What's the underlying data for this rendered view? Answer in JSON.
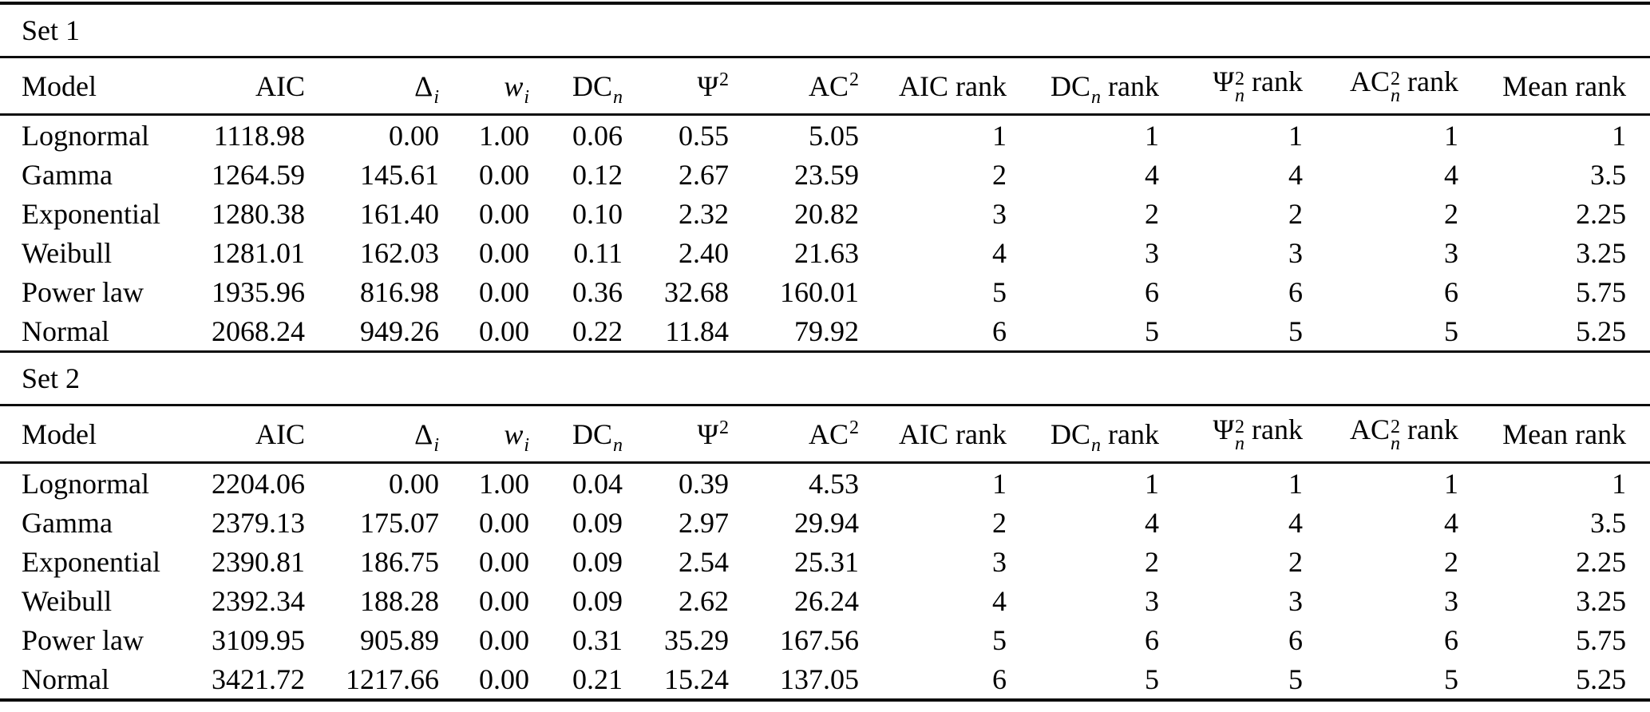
{
  "page": {
    "background": "#ffffff",
    "text_color": "#000000",
    "rule_color": "#0d0d0d"
  },
  "table": {
    "headers": [
      {
        "key": "model",
        "text": "Model",
        "align": "left"
      },
      {
        "key": "aic",
        "text": "AIC"
      },
      {
        "key": "delta-i",
        "pre": "Δ",
        "sub": "i"
      },
      {
        "key": "w-i",
        "pre": "w",
        "italic": true,
        "sub": "i"
      },
      {
        "key": "dc-n",
        "pre": "DC",
        "sub": "n"
      },
      {
        "key": "psi2",
        "pre": "Ψ",
        "sup": "2"
      },
      {
        "key": "ac2",
        "pre": "AC",
        "sup": "2"
      },
      {
        "key": "aic-rank",
        "text": "AIC rank"
      },
      {
        "key": "dc-n-rank",
        "pre": "DC",
        "sub": "n",
        "post": " rank"
      },
      {
        "key": "psi2-n-rank",
        "pre": "Ψ",
        "sup": "2",
        "sub": "n",
        "post": " rank"
      },
      {
        "key": "ac2-n-rank",
        "pre": "AC",
        "sup": "2",
        "sub": "n",
        "post": " rank"
      },
      {
        "key": "mean-rank",
        "text": "Mean rank"
      }
    ],
    "sets": [
      {
        "label": "Set 1",
        "rows": [
          {
            "model": "Lognormal",
            "values": [
              "1118.98",
              "0.00",
              "1.00",
              "0.06",
              "0.55",
              "5.05",
              "1",
              "1",
              "1",
              "1",
              "1"
            ]
          },
          {
            "model": "Gamma",
            "values": [
              "1264.59",
              "145.61",
              "0.00",
              "0.12",
              "2.67",
              "23.59",
              "2",
              "4",
              "4",
              "4",
              "3.5"
            ]
          },
          {
            "model": "Exponential",
            "values": [
              "1280.38",
              "161.40",
              "0.00",
              "0.10",
              "2.32",
              "20.82",
              "3",
              "2",
              "2",
              "2",
              "2.25"
            ]
          },
          {
            "model": "Weibull",
            "values": [
              "1281.01",
              "162.03",
              "0.00",
              "0.11",
              "2.40",
              "21.63",
              "4",
              "3",
              "3",
              "3",
              "3.25"
            ]
          },
          {
            "model": "Power law",
            "values": [
              "1935.96",
              "816.98",
              "0.00",
              "0.36",
              "32.68",
              "160.01",
              "5",
              "6",
              "6",
              "6",
              "5.75"
            ]
          },
          {
            "model": "Normal",
            "values": [
              "2068.24",
              "949.26",
              "0.00",
              "0.22",
              "11.84",
              "79.92",
              "6",
              "5",
              "5",
              "5",
              "5.25"
            ]
          }
        ]
      },
      {
        "label": "Set 2",
        "rows": [
          {
            "model": "Lognormal",
            "values": [
              "2204.06",
              "0.00",
              "1.00",
              "0.04",
              "0.39",
              "4.53",
              "1",
              "1",
              "1",
              "1",
              "1"
            ]
          },
          {
            "model": "Gamma",
            "values": [
              "2379.13",
              "175.07",
              "0.00",
              "0.09",
              "2.97",
              "29.94",
              "2",
              "4",
              "4",
              "4",
              "3.5"
            ]
          },
          {
            "model": "Exponential",
            "values": [
              "2390.81",
              "186.75",
              "0.00",
              "0.09",
              "2.54",
              "25.31",
              "3",
              "2",
              "2",
              "2",
              "2.25"
            ]
          },
          {
            "model": "Weibull",
            "values": [
              "2392.34",
              "188.28",
              "0.00",
              "0.09",
              "2.62",
              "26.24",
              "4",
              "3",
              "3",
              "3",
              "3.25"
            ]
          },
          {
            "model": "Power law",
            "values": [
              "3109.95",
              "905.89",
              "0.00",
              "0.31",
              "35.29",
              "167.56",
              "5",
              "6",
              "6",
              "6",
              "5.75"
            ]
          },
          {
            "model": "Normal",
            "values": [
              "3421.72",
              "1217.66",
              "0.00",
              "0.21",
              "15.24",
              "137.05",
              "6",
              "5",
              "5",
              "5",
              "5.25"
            ]
          }
        ]
      }
    ]
  }
}
